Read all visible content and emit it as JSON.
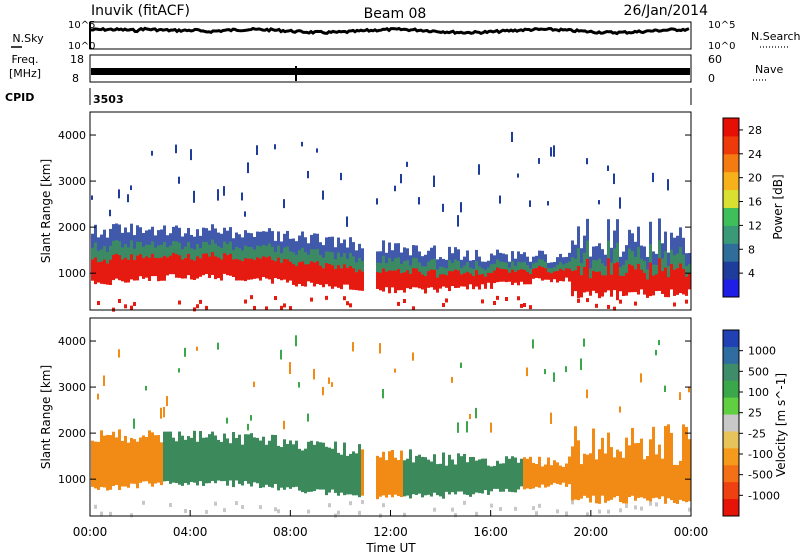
{
  "header": {
    "station": "Inuvik (fitACF)",
    "beam": "Beam 08",
    "date": "26/Jan/2014"
  },
  "strips": {
    "nsky": {
      "left_label": "N.Sky",
      "right_label": "N.Search",
      "left_ticks": [
        "10^5",
        "10^0"
      ],
      "right_ticks": [
        "10^5",
        "10^0"
      ]
    },
    "freq": {
      "left_label_1": "Freq.",
      "left_label_2": "[MHz]",
      "right_label": "Nave",
      "left_ticks": [
        "18",
        "8"
      ],
      "right_ticks": [
        "60",
        "0"
      ]
    },
    "cpid": {
      "label": "CPID",
      "value": "3503"
    }
  },
  "colors": {
    "power_scale": [
      "#1e1ee6",
      "#1e3c9c",
      "#2f6e9a",
      "#3a9a78",
      "#3fbf5a",
      "#d8e032",
      "#f7b21b",
      "#f47a12",
      "#ee3a0b",
      "#e60f05"
    ],
    "velocity_scale": [
      "#2040b4",
      "#2f6da0",
      "#3f8c6a",
      "#3aa84a",
      "#60d040",
      "#c8c8c8",
      "#e6c45a",
      "#f59a1a",
      "#f47016",
      "#ee4010",
      "#e61408"
    ],
    "echo_power": "#e51b12",
    "echo_mid": "#3c8a64",
    "echo_edge": "#1e3c9c",
    "echo_vel_main": "#3c8a5c",
    "echo_vel_orange": "#f28a16"
  },
  "chart_data": [
    {
      "type": "heatmap",
      "name": "Power panel",
      "ylabel": "Slant Range [km]",
      "yticks": [
        "1000",
        "2000",
        "3000",
        "4000"
      ],
      "ylim": [
        200,
        4500
      ],
      "xlim": [
        "00:00",
        "24:00"
      ],
      "colorbar_label": "Power [dB]",
      "colorbar_ticks": [
        "4",
        "8",
        "12",
        "16",
        "20",
        "24",
        "28"
      ],
      "colorbar_range": [
        0,
        30
      ]
    },
    {
      "type": "heatmap",
      "name": "Velocity panel",
      "ylabel": "Slant Range [km]",
      "yticks": [
        "1000",
        "2000",
        "3000",
        "4000"
      ],
      "ylim": [
        200,
        4500
      ],
      "xlabel": "Time UT",
      "xticks": [
        "00:00",
        "04:00",
        "08:00",
        "12:00",
        "16:00",
        "20:00",
        "00:00"
      ],
      "colorbar_label": "Velocity [m s^-1]",
      "colorbar_ticks": [
        "1000",
        "500",
        "100",
        "25",
        "-25",
        "-100",
        "-500",
        "-1000"
      ]
    }
  ]
}
